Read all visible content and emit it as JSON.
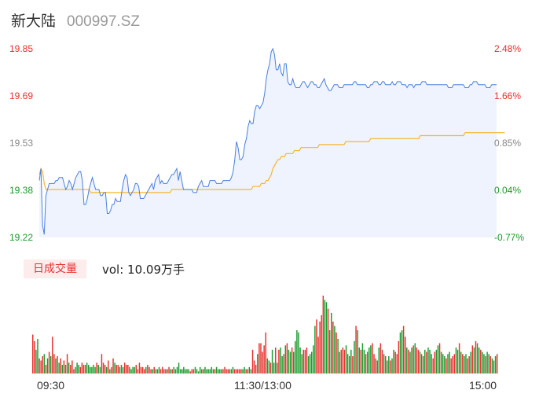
{
  "header": {
    "name": "新大陆",
    "code": "000997.SZ"
  },
  "price_axis": {
    "labels": [
      "19.85",
      "19.69",
      "19.53",
      "19.38",
      "19.22"
    ]
  },
  "pct_axis": {
    "labels": [
      "2.48%",
      "1.66%",
      "0.85%",
      "0.04%",
      "-0.77%"
    ]
  },
  "volume": {
    "tab_label": "日成交量",
    "text": "vol: 10.09万手"
  },
  "time_axis": {
    "labels": [
      "09:30",
      "11:30/13:00",
      "15:00"
    ]
  },
  "colors": {
    "price_line": "#4a7fe0",
    "avg_line": "#f5b731",
    "up": "#e8312d",
    "down": "#1a9b2b",
    "fill": "#eef3fd"
  },
  "chart_data": {
    "type": "line",
    "ylim": [
      19.22,
      19.85
    ],
    "series": [
      {
        "values": [
          19.41,
          19.45,
          19.26,
          19.23,
          19.36,
          19.38,
          19.4,
          19.4,
          19.4,
          19.4,
          19.41,
          19.41,
          19.42,
          19.42,
          19.42,
          19.4,
          19.38,
          19.39,
          19.41,
          19.4,
          19.38,
          19.4,
          19.42,
          19.43,
          19.44,
          19.44,
          19.41,
          19.33,
          19.33,
          19.35,
          19.38,
          19.4,
          19.42,
          19.4,
          19.38,
          19.38,
          19.38,
          19.36,
          19.36,
          19.37,
          19.37,
          19.3,
          19.3,
          19.31,
          19.33,
          19.33,
          19.35,
          19.34,
          19.34,
          19.34,
          19.38,
          19.41,
          19.43,
          19.42,
          19.37,
          19.36,
          19.37,
          19.38,
          19.4,
          19.4,
          19.39,
          19.35,
          19.35,
          19.35,
          19.36,
          19.37,
          19.38,
          19.39,
          19.4,
          19.38,
          19.41,
          19.42,
          19.43,
          19.4,
          19.41,
          19.4,
          19.4,
          19.4,
          19.41,
          19.42,
          19.43,
          19.43,
          19.44,
          19.45,
          19.41,
          19.44,
          19.41,
          19.38,
          19.38,
          19.38,
          19.38,
          19.38,
          19.38,
          19.37,
          19.37,
          19.37,
          19.39,
          19.4,
          19.41,
          19.39,
          19.39,
          19.39,
          19.39,
          19.41,
          19.41,
          19.41,
          19.41,
          19.4,
          19.4,
          19.4,
          19.4,
          19.41,
          19.41,
          19.41,
          19.41,
          19.41,
          19.42,
          19.44,
          19.48,
          19.54,
          19.52,
          19.48,
          19.48,
          19.49,
          19.53,
          19.55,
          19.59,
          19.61,
          19.6,
          19.6,
          19.64,
          19.66,
          19.66,
          19.65,
          19.66,
          19.67,
          19.7,
          19.75,
          19.78,
          19.8,
          19.84,
          19.85,
          19.83,
          19.78,
          19.78,
          19.8,
          19.77,
          19.76,
          19.8,
          19.8,
          19.74,
          19.73,
          19.73,
          19.75,
          19.73,
          19.72,
          19.72,
          19.72,
          19.73,
          19.74,
          19.74,
          19.73,
          19.72,
          19.73,
          19.74,
          19.74,
          19.73,
          19.73,
          19.72,
          19.72,
          19.73,
          19.74,
          19.75,
          19.73,
          19.72,
          19.71,
          19.71,
          19.72,
          19.73,
          19.73,
          19.73,
          19.72,
          19.72,
          19.72,
          19.73,
          19.73,
          19.73,
          19.73,
          19.73,
          19.73,
          19.74,
          19.74,
          19.73,
          19.73,
          19.73,
          19.73,
          19.73,
          19.73,
          19.72,
          19.72,
          19.73,
          19.73,
          19.74,
          19.74,
          19.74,
          19.73,
          19.73,
          19.74,
          19.74,
          19.73,
          19.73,
          19.73,
          19.73,
          19.74,
          19.73,
          19.73,
          19.74,
          19.74,
          19.74,
          19.73,
          19.73,
          19.73,
          19.72,
          19.73,
          19.73,
          19.73,
          19.72,
          19.73,
          19.73,
          19.73,
          19.73,
          19.74,
          19.74,
          19.74,
          19.73,
          19.73,
          19.73,
          19.73,
          19.73,
          19.73,
          19.73,
          19.73,
          19.73,
          19.73,
          19.73,
          19.73,
          19.73,
          19.72,
          19.72,
          19.72,
          19.73,
          19.73,
          19.73,
          19.73,
          19.73,
          19.73,
          19.73,
          19.72,
          19.72,
          19.72,
          19.73,
          19.73,
          19.74,
          19.74,
          19.74,
          19.73,
          19.73,
          19.73,
          19.73,
          19.73,
          19.72,
          19.72,
          19.72,
          19.73,
          19.73,
          19.73,
          19.73
        ]
      },
      {
        "values": [
          19.43,
          19.45,
          19.44,
          19.4,
          19.38,
          19.38,
          19.38,
          19.38,
          19.38,
          19.38,
          19.38,
          19.38,
          19.38,
          19.38,
          19.38,
          19.38,
          19.38,
          19.38,
          19.38,
          19.38,
          19.38,
          19.38,
          19.38,
          19.38,
          19.38,
          19.38,
          19.38,
          19.38,
          19.38,
          19.38,
          19.38,
          19.37,
          19.37,
          19.37,
          19.37,
          19.37,
          19.37,
          19.37,
          19.37,
          19.37,
          19.37,
          19.37,
          19.37,
          19.37,
          19.37,
          19.37,
          19.37,
          19.37,
          19.37,
          19.37,
          19.37,
          19.37,
          19.37,
          19.37,
          19.37,
          19.37,
          19.37,
          19.37,
          19.37,
          19.37,
          19.37,
          19.37,
          19.37,
          19.37,
          19.37,
          19.37,
          19.37,
          19.37,
          19.37,
          19.37,
          19.37,
          19.37,
          19.37,
          19.37,
          19.37,
          19.37,
          19.37,
          19.37,
          19.37,
          19.37,
          19.38,
          19.38,
          19.38,
          19.38,
          19.38,
          19.38,
          19.38,
          19.38,
          19.38,
          19.38,
          19.38,
          19.38,
          19.38,
          19.38,
          19.38,
          19.38,
          19.38,
          19.38,
          19.38,
          19.38,
          19.38,
          19.38,
          19.38,
          19.38,
          19.38,
          19.38,
          19.38,
          19.38,
          19.38,
          19.38,
          19.38,
          19.38,
          19.38,
          19.38,
          19.38,
          19.38,
          19.38,
          19.38,
          19.38,
          19.38,
          19.38,
          19.38,
          19.38,
          19.38,
          19.38,
          19.38,
          19.38,
          19.38,
          19.38,
          19.39,
          19.39,
          19.39,
          19.39,
          19.39,
          19.4,
          19.4,
          19.4,
          19.41,
          19.41,
          19.42,
          19.43,
          19.45,
          19.46,
          19.47,
          19.48,
          19.48,
          19.49,
          19.49,
          19.49,
          19.5,
          19.5,
          19.5,
          19.5,
          19.5,
          19.51,
          19.51,
          19.51,
          19.51,
          19.52,
          19.52,
          19.52,
          19.52,
          19.52,
          19.52,
          19.52,
          19.52,
          19.52,
          19.52,
          19.52,
          19.53,
          19.53,
          19.53,
          19.53,
          19.53,
          19.53,
          19.53,
          19.53,
          19.53,
          19.53,
          19.53,
          19.53,
          19.53,
          19.53,
          19.53,
          19.53,
          19.54,
          19.54,
          19.54,
          19.54,
          19.54,
          19.54,
          19.54,
          19.54,
          19.54,
          19.54,
          19.54,
          19.54,
          19.54,
          19.54,
          19.54,
          19.55,
          19.55,
          19.55,
          19.55,
          19.55,
          19.55,
          19.55,
          19.55,
          19.55,
          19.55,
          19.55,
          19.55,
          19.55,
          19.55,
          19.55,
          19.55,
          19.55,
          19.55,
          19.55,
          19.55,
          19.55,
          19.55,
          19.55,
          19.55,
          19.55,
          19.55,
          19.55,
          19.55,
          19.55,
          19.55,
          19.56,
          19.56,
          19.56,
          19.56,
          19.56,
          19.56,
          19.56,
          19.56,
          19.56,
          19.56,
          19.56,
          19.56,
          19.56,
          19.56,
          19.56,
          19.56,
          19.56,
          19.56,
          19.56,
          19.56,
          19.56,
          19.56,
          19.56,
          19.56,
          19.56,
          19.56,
          19.56,
          19.57,
          19.57,
          19.57,
          19.57,
          19.57,
          19.57,
          19.57,
          19.57,
          19.57,
          19.57,
          19.57,
          19.57,
          19.57,
          19.57,
          19.57,
          19.57,
          19.57,
          19.57,
          19.57,
          19.57,
          19.57,
          19.57,
          19.57,
          19.57,
          19.57
        ]
      }
    ],
    "volume_values": [
      18,
      15,
      11,
      16,
      7,
      6,
      8,
      9,
      4,
      7,
      10,
      8,
      17,
      9,
      7,
      8,
      5,
      7,
      4,
      6,
      4,
      9,
      5,
      4,
      6,
      2,
      3,
      5,
      4,
      3,
      5,
      4,
      4,
      5,
      4,
      3,
      3,
      4,
      3,
      5,
      4,
      3,
      9,
      5,
      4,
      3,
      6,
      2,
      3,
      7,
      5,
      4,
      4,
      3,
      4,
      3,
      5,
      4,
      4,
      3,
      2,
      3,
      3,
      4,
      2,
      5,
      3,
      3,
      2,
      3,
      4,
      3,
      2,
      2,
      3,
      2,
      2,
      3,
      2,
      3,
      2,
      2,
      2,
      3,
      2,
      2,
      3,
      2,
      3,
      5,
      2,
      2,
      3,
      2,
      2,
      2,
      1,
      2,
      2,
      3,
      2,
      1,
      3,
      2,
      2,
      3,
      2,
      2,
      2,
      3,
      2,
      2,
      3,
      2,
      2,
      2,
      2,
      3,
      2,
      2,
      2,
      2,
      3,
      2,
      2,
      2,
      2,
      2,
      2,
      3,
      2,
      2,
      3,
      2,
      11,
      6,
      4,
      9,
      14,
      14,
      10,
      13,
      19,
      7,
      6,
      5,
      11,
      5,
      12,
      5,
      11,
      12,
      8,
      9,
      13,
      14,
      11,
      10,
      12,
      10,
      15,
      20,
      19,
      12,
      9,
      11,
      11,
      12,
      8,
      9,
      10,
      13,
      22,
      25,
      17,
      24,
      27,
      36,
      34,
      33,
      30,
      20,
      28,
      24,
      22,
      19,
      16,
      10,
      11,
      12,
      11,
      13,
      9,
      8,
      11,
      8,
      15,
      22,
      20,
      12,
      11,
      14,
      11,
      9,
      10,
      12,
      13,
      14,
      9,
      7,
      6,
      12,
      14,
      11,
      9,
      8,
      6,
      8,
      6,
      7,
      11,
      10,
      9,
      15,
      19,
      20,
      22,
      17,
      12,
      11,
      10,
      12,
      13,
      14,
      12,
      11,
      10,
      9,
      8,
      11,
      10,
      12,
      11,
      9,
      7,
      10,
      11,
      13,
      14,
      10,
      9,
      8,
      7,
      9,
      10,
      7,
      8,
      9,
      12,
      11,
      14,
      10,
      9,
      8,
      9,
      7,
      8,
      10,
      13,
      12,
      15,
      14,
      12,
      11,
      10,
      9,
      8,
      10,
      9,
      8,
      7,
      6,
      8,
      9
    ],
    "volume_up": [
      true,
      true,
      false,
      false,
      true,
      true,
      true,
      false,
      true,
      false,
      true,
      false,
      true,
      true,
      false,
      true,
      false,
      true,
      false,
      true,
      false,
      true,
      false,
      true,
      true,
      true,
      false,
      false,
      false,
      true,
      true,
      true,
      true,
      false,
      false,
      false,
      false,
      false,
      false,
      true,
      false,
      false,
      true,
      true,
      true,
      false,
      true,
      false,
      true,
      true,
      false,
      true,
      true,
      false,
      false,
      false,
      true,
      true,
      true,
      false,
      false,
      false,
      false,
      true,
      true,
      true,
      true,
      true,
      true,
      false,
      true,
      true,
      true,
      false,
      true,
      false,
      false,
      false,
      true,
      true,
      true,
      false,
      true,
      true,
      false,
      true,
      false,
      false,
      false,
      false,
      false,
      false,
      false,
      false,
      false,
      false,
      true,
      true,
      true,
      false,
      false,
      false,
      false,
      true,
      false,
      false,
      false,
      false,
      false,
      false,
      false,
      true,
      false,
      false,
      false,
      false,
      true,
      true,
      true,
      true,
      false,
      false,
      false,
      true,
      true,
      true,
      true,
      true,
      false,
      false,
      true,
      true,
      false,
      false,
      true,
      true,
      true,
      false,
      true,
      true,
      true,
      true,
      true,
      false,
      false,
      true,
      false,
      false,
      true,
      false,
      true,
      false,
      false,
      true,
      false,
      true,
      false,
      false,
      true,
      false,
      false,
      false,
      false,
      false,
      false,
      true,
      true,
      true,
      false,
      false,
      false,
      false,
      false,
      true,
      true,
      true,
      true,
      true,
      false,
      false,
      true,
      false,
      false,
      true,
      false,
      true,
      false,
      false,
      true,
      true,
      true,
      false,
      false,
      true,
      false,
      true,
      false,
      true,
      false,
      false,
      true,
      false,
      false,
      true,
      false,
      false,
      false,
      true,
      true,
      false,
      true,
      false,
      true,
      true,
      false,
      true,
      false,
      false,
      true,
      false,
      false,
      true,
      true,
      true,
      false,
      false,
      true,
      true,
      false,
      true,
      false,
      false,
      true,
      false,
      true,
      true,
      false,
      true,
      false,
      false,
      true,
      false,
      false,
      false,
      true,
      true,
      false,
      false,
      true,
      false,
      false,
      false,
      true,
      false,
      false,
      true,
      true,
      true,
      false,
      false,
      true,
      false,
      true,
      false,
      false,
      true,
      true,
      false,
      true,
      false,
      true,
      false,
      false,
      true,
      false,
      false,
      true,
      false,
      false,
      true,
      false,
      false,
      false,
      true,
      false,
      false
    ]
  }
}
